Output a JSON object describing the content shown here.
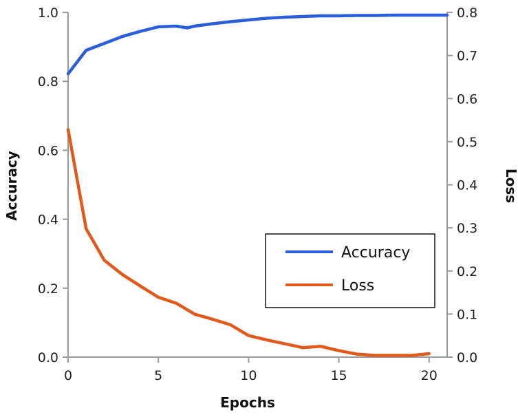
{
  "chart_data": {
    "type": "line",
    "title": "",
    "xlabel": "Epochs",
    "ylabel_left": "Accuracy",
    "ylabel_right": "Loss",
    "xlim": [
      0,
      21
    ],
    "ylim_left": [
      0.0,
      1.0
    ],
    "ylim_right": [
      0.0,
      0.8
    ],
    "x_ticks": [
      "0",
      "5",
      "10",
      "15",
      "20"
    ],
    "y_left_ticks": [
      "0.0",
      "0.2",
      "0.4",
      "0.6",
      "0.8",
      "1.0"
    ],
    "y_right_ticks": [
      "0.0",
      "0.1",
      "0.2",
      "0.3",
      "0.4",
      "0.5",
      "0.6",
      "0.7",
      "0.8"
    ],
    "grid": false,
    "legend_position": "lower-right",
    "series": [
      {
        "name": "Accuracy",
        "axis": "left",
        "color": "#2b5fd9",
        "x": [
          0,
          1,
          2,
          3,
          4,
          5,
          6,
          6.6,
          7,
          8,
          9,
          10,
          11,
          12,
          13,
          14,
          15,
          16,
          17,
          18,
          19,
          20,
          21
        ],
        "y": [
          0.822,
          0.89,
          0.91,
          0.93,
          0.945,
          0.958,
          0.96,
          0.955,
          0.96,
          0.967,
          0.973,
          0.978,
          0.983,
          0.986,
          0.988,
          0.99,
          0.99,
          0.991,
          0.991,
          0.992,
          0.992,
          0.992,
          0.992
        ]
      },
      {
        "name": "Loss",
        "axis": "right",
        "color": "#e05a1b",
        "x": [
          0,
          1,
          2,
          3,
          4,
          5,
          6,
          7,
          8,
          9,
          10,
          11,
          12,
          13,
          14,
          15,
          16,
          17,
          18,
          19,
          20
        ],
        "y": [
          0.528,
          0.298,
          0.225,
          0.192,
          0.165,
          0.139,
          0.125,
          0.1,
          0.088,
          0.075,
          0.05,
          0.04,
          0.031,
          0.022,
          0.025,
          0.015,
          0.007,
          0.004,
          0.004,
          0.004,
          0.008
        ]
      }
    ],
    "legend": {
      "items": [
        "Accuracy",
        "Loss"
      ]
    }
  }
}
